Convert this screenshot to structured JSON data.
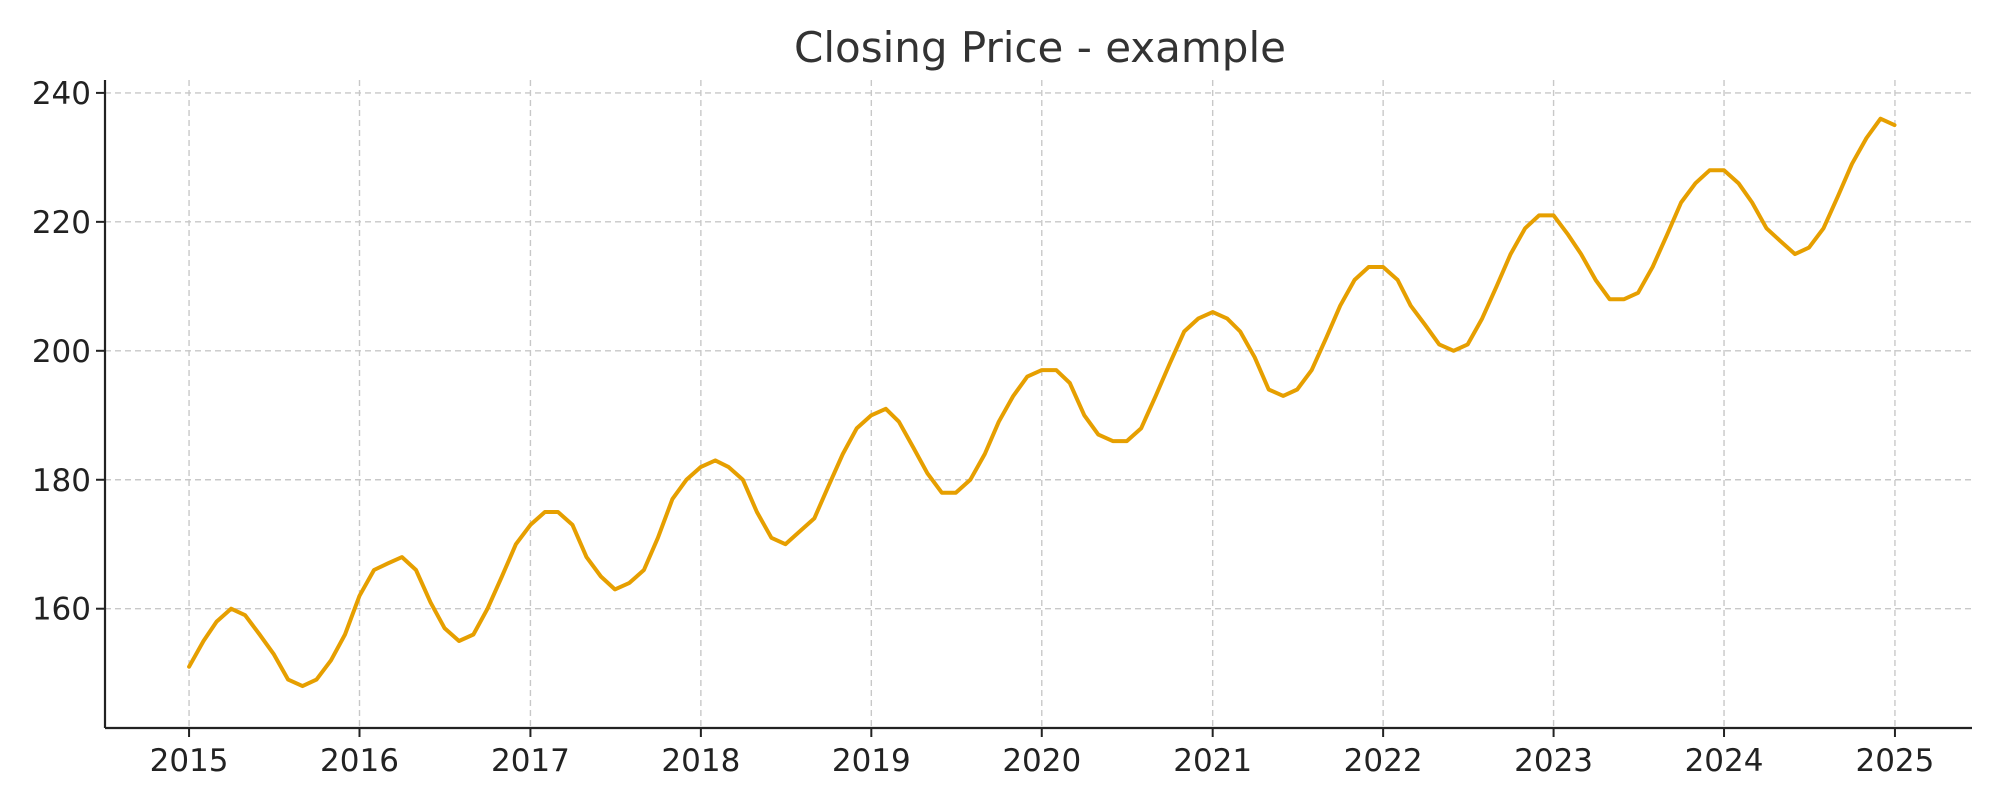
{
  "chart_data": {
    "type": "line",
    "title": "Closing Price - example",
    "xlabel": "",
    "ylabel": "",
    "x_ticks": [
      "2015",
      "2016",
      "2017",
      "2018",
      "2019",
      "2020",
      "2021",
      "2022",
      "2023",
      "2024",
      "2025"
    ],
    "y_ticks": [
      160,
      180,
      200,
      220,
      240
    ],
    "xlim": [
      "2014-07-05",
      "2025-06-15"
    ],
    "ylim": [
      141.5,
      242
    ],
    "grid": true,
    "legend": "none",
    "series": [
      {
        "color": "#E69F00",
        "x": [
          "2015-01-01",
          "2015-02-01",
          "2015-03-01",
          "2015-04-01",
          "2015-05-01",
          "2015-06-01",
          "2015-07-01",
          "2015-08-01",
          "2015-09-01",
          "2015-10-01",
          "2015-11-01",
          "2015-12-01",
          "2016-01-01",
          "2016-02-01",
          "2016-03-01",
          "2016-04-01",
          "2016-05-01",
          "2016-06-01",
          "2016-07-01",
          "2016-08-01",
          "2016-09-01",
          "2016-10-01",
          "2016-11-01",
          "2016-12-01",
          "2017-01-01",
          "2017-02-01",
          "2017-03-01",
          "2017-04-01",
          "2017-05-01",
          "2017-06-01",
          "2017-07-01",
          "2017-08-01",
          "2017-09-01",
          "2017-10-01",
          "2017-11-01",
          "2017-12-01",
          "2018-01-01",
          "2018-02-01",
          "2018-03-01",
          "2018-04-01",
          "2018-05-01",
          "2018-06-01",
          "2018-07-01",
          "2018-08-01",
          "2018-09-01",
          "2018-10-01",
          "2018-11-01",
          "2018-12-01",
          "2019-01-01",
          "2019-02-01",
          "2019-03-01",
          "2019-04-01",
          "2019-05-01",
          "2019-06-01",
          "2019-07-01",
          "2019-08-01",
          "2019-09-01",
          "2019-10-01",
          "2019-11-01",
          "2019-12-01",
          "2020-01-01",
          "2020-02-01",
          "2020-03-01",
          "2020-04-01",
          "2020-05-01",
          "2020-06-01",
          "2020-07-01",
          "2020-08-01",
          "2020-09-01",
          "2020-10-01",
          "2020-11-01",
          "2020-12-01",
          "2021-01-01",
          "2021-02-01",
          "2021-03-01",
          "2021-04-01",
          "2021-05-01",
          "2021-06-01",
          "2021-07-01",
          "2021-08-01",
          "2021-09-01",
          "2021-10-01",
          "2021-11-01",
          "2021-12-01",
          "2022-01-01",
          "2022-02-01",
          "2022-03-01",
          "2022-04-01",
          "2022-05-01",
          "2022-06-01",
          "2022-07-01",
          "2022-08-01",
          "2022-09-01",
          "2022-10-01",
          "2022-11-01",
          "2022-12-01",
          "2023-01-01",
          "2023-02-01",
          "2023-03-01",
          "2023-04-01",
          "2023-05-01",
          "2023-06-01",
          "2023-07-01",
          "2023-08-01",
          "2023-09-01",
          "2023-10-01",
          "2023-11-01",
          "2023-12-01",
          "2024-01-01",
          "2024-02-01",
          "2024-03-01",
          "2024-04-01",
          "2024-05-01",
          "2024-06-01",
          "2024-07-01",
          "2024-08-01",
          "2024-09-01",
          "2024-10-01",
          "2024-11-01",
          "2024-12-01",
          "2024-12-31"
        ],
        "y": [
          151,
          155,
          158,
          160,
          159,
          156,
          153,
          149,
          148,
          149,
          152,
          156,
          162,
          166,
          167,
          168,
          166,
          161,
          157,
          155,
          156,
          160,
          165,
          170,
          173,
          175,
          175,
          173,
          168,
          165,
          163,
          164,
          166,
          171,
          177,
          180,
          182,
          183,
          182,
          180,
          175,
          171,
          170,
          172,
          174,
          179,
          184,
          188,
          190,
          191,
          189,
          185,
          181,
          178,
          178,
          180,
          184,
          189,
          193,
          196,
          197,
          197,
          195,
          190,
          187,
          186,
          186,
          188,
          193,
          198,
          203,
          205,
          206,
          205,
          203,
          199,
          194,
          193,
          194,
          197,
          202,
          207,
          211,
          213,
          213,
          211,
          207,
          204,
          201,
          200,
          201,
          205,
          210,
          215,
          219,
          221,
          221,
          218,
          215,
          211,
          208,
          208,
          209,
          213,
          218,
          223,
          226,
          228,
          228,
          226,
          223,
          219,
          217,
          215,
          216,
          219,
          224,
          229,
          233,
          236,
          235
        ]
      }
    ]
  }
}
